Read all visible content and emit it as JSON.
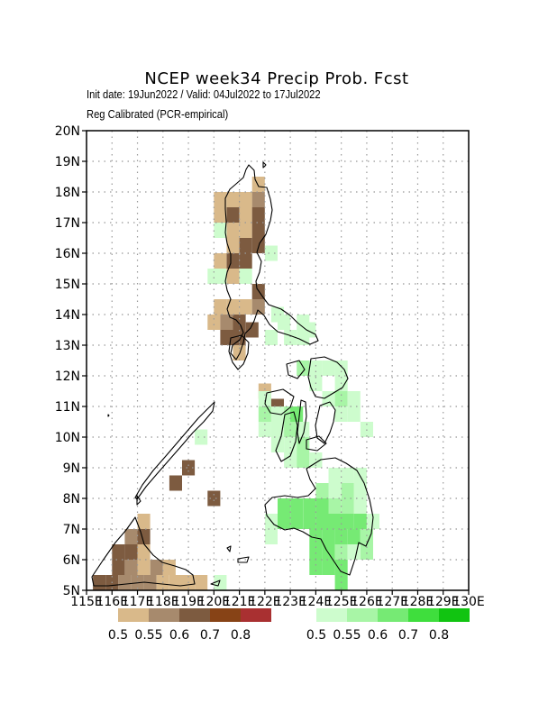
{
  "title": "NCEP  week34  Precip  Prob.  Fcst",
  "subtitle_1": "Init date: 19Jun2022 / Valid: 04Jul2022 to 17Jul2022",
  "subtitle_2": "Reg Calibrated (PCR-empirical)",
  "chart_data": {
    "type": "heatmap",
    "x_axis": {
      "ticks": [
        115,
        116,
        117,
        118,
        119,
        120,
        121,
        122,
        123,
        124,
        125,
        126,
        127,
        128,
        129,
        130
      ],
      "labels": [
        "115E",
        "116E",
        "117E",
        "118E",
        "119E",
        "120E",
        "121E",
        "122E",
        "123E",
        "124E",
        "125E",
        "126E",
        "127E",
        "128E",
        "129E",
        "130E"
      ]
    },
    "y_axis": {
      "ticks": [
        5,
        6,
        7,
        8,
        9,
        10,
        11,
        12,
        13,
        14,
        15,
        16,
        17,
        18,
        19,
        20
      ],
      "labels": [
        "5N",
        "6N",
        "7N",
        "8N",
        "9N",
        "10N",
        "11N",
        "12N",
        "13N",
        "14N",
        "15N",
        "16N",
        "17N",
        "18N",
        "19N",
        "20N"
      ]
    },
    "grid": true,
    "cell_size_deg": 0.5,
    "dry_legend": {
      "labels": [
        "0.5",
        "0.55",
        "0.6",
        "0.7",
        "0.8"
      ],
      "colors": [
        "#d9b98a",
        "#a78a6d",
        "#7d5b40",
        "#874316",
        "#a93031"
      ]
    },
    "wet_legend": {
      "labels": [
        "0.5",
        "0.55",
        "0.6",
        "0.7",
        "0.8"
      ],
      "colors": [
        "#cdfccd",
        "#a8f5a6",
        "#76ea74",
        "#3fde3d",
        "#11c411"
      ]
    },
    "cells": [
      {
        "lon": 119.75,
        "lat": 7.75,
        "cat": "dry3"
      },
      {
        "lon": 121.25,
        "lat": 13.25,
        "cat": "dry3"
      },
      {
        "lon": 121.5,
        "lat": 18.0,
        "cat": "dry1"
      },
      {
        "lon": 121.0,
        "lat": 17.5,
        "cat": "dry1"
      },
      {
        "lon": 122.0,
        "lat": 15.75,
        "cat": "wet1"
      },
      {
        "lon": 123.0,
        "lat": 10.5,
        "cat": "wet3"
      },
      {
        "lon": 124.75,
        "lat": 7.0,
        "cat": "wet3"
      },
      {
        "lon": 125.5,
        "lat": 8.25,
        "cat": "wet1"
      }
    ]
  }
}
